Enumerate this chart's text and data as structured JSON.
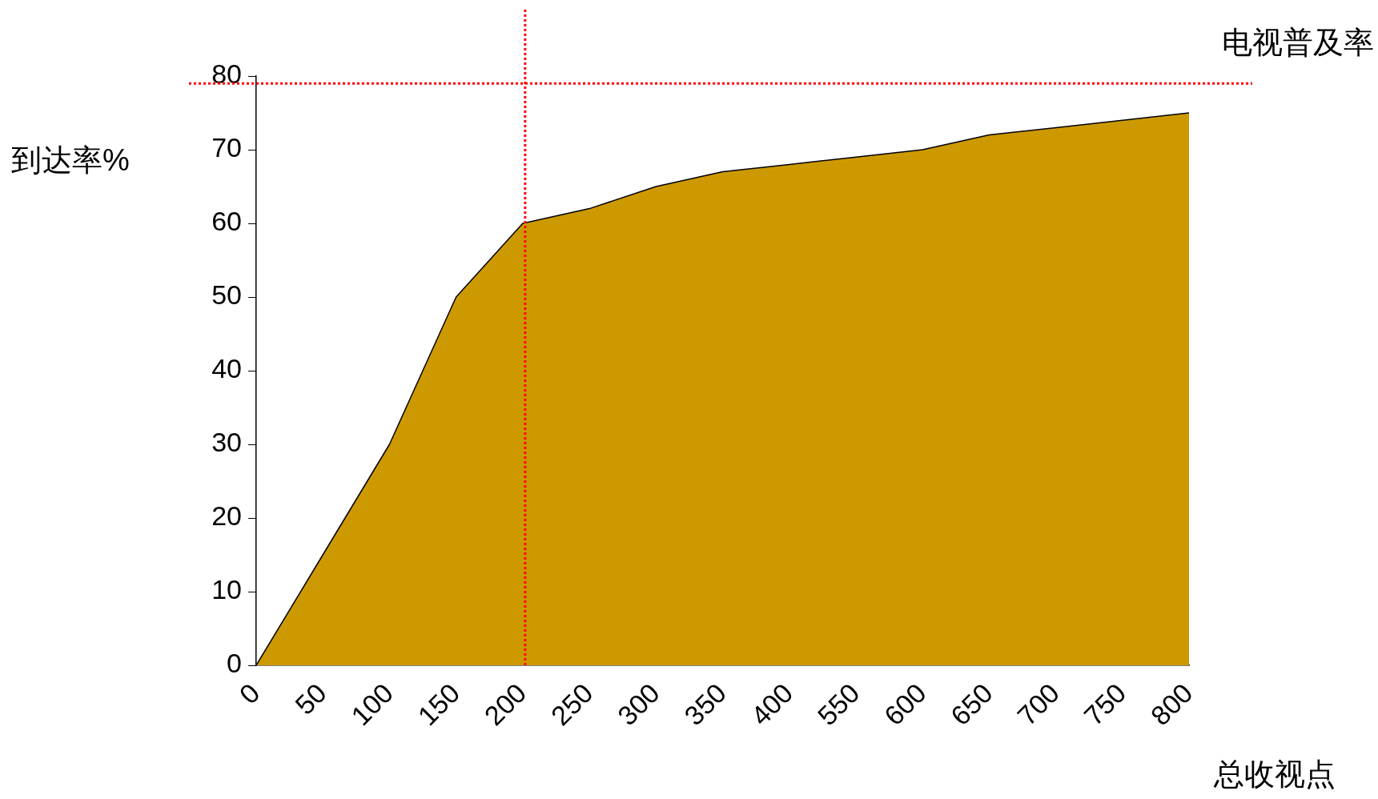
{
  "chart_data": {
    "type": "area",
    "xlabel": "总收视点",
    "ylabel": "到达率%",
    "categories": [
      "0",
      "50",
      "100",
      "150",
      "200",
      "250",
      "300",
      "350",
      "400",
      "550",
      "600",
      "650",
      "700",
      "750",
      "800"
    ],
    "series": [
      {
        "color": "#cc9900",
        "values": [
          0,
          15,
          30,
          50,
          60,
          62,
          65,
          67,
          68,
          69,
          70,
          72,
          73,
          74,
          75
        ]
      }
    ],
    "ylim": [
      0,
      80
    ],
    "yticks": [
      0,
      10,
      20,
      30,
      40,
      50,
      60,
      70,
      80
    ],
    "grid": false,
    "legend": false,
    "ref_lines": [
      {
        "axis": "y",
        "value": 79,
        "label": "电视普及率",
        "color": "#ff0000",
        "line_style": "dotted"
      },
      {
        "axis": "x",
        "value": "200",
        "color": "#ff0000",
        "line_style": "dotted"
      }
    ]
  }
}
